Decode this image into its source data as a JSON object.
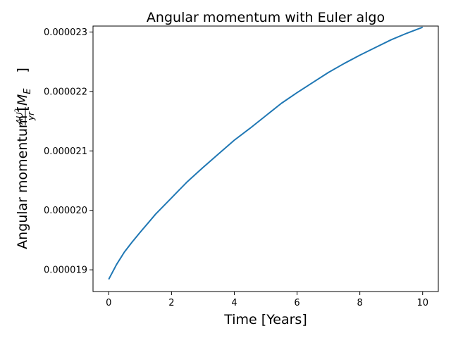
{
  "chart_data": {
    "type": "line",
    "title": "Angular momentum with Euler algo",
    "xlabel": "Time [Years]",
    "ylabel": {
      "main": "Angular momentum [",
      "m": "M",
      "sub": "E",
      "num_base": "AU",
      "num_exp": "2",
      "den": "yr",
      "close": "]"
    },
    "xlim": [
      -0.5,
      10.5
    ],
    "ylim": [
      1.8635e-05,
      2.31e-05
    ],
    "x_ticks": [
      0,
      2,
      4,
      6,
      8,
      10
    ],
    "x_tick_labels": [
      "0",
      "2",
      "4",
      "6",
      "8",
      "10"
    ],
    "y_ticks": [
      1.9e-05,
      2e-05,
      2.1e-05,
      2.2e-05,
      2.3e-05
    ],
    "y_tick_labels": [
      "0.000019",
      "0.000020",
      "0.000021",
      "0.000022",
      "0.000023"
    ],
    "grid": false,
    "series": [
      {
        "color": "#1f77b4",
        "x": [
          0,
          0.25,
          0.5,
          0.75,
          1,
          1.5,
          2,
          2.5,
          3,
          3.5,
          4,
          4.5,
          5,
          5.5,
          6,
          6.5,
          7,
          7.5,
          8,
          8.5,
          9,
          9.5,
          10
        ],
        "y": [
          1.884e-05,
          1.909e-05,
          1.93e-05,
          1.947e-05,
          1.963e-05,
          1.994e-05,
          2.021e-05,
          2.048e-05,
          2.072e-05,
          2.095e-05,
          2.118e-05,
          2.138e-05,
          2.159e-05,
          2.18e-05,
          2.198e-05,
          2.215e-05,
          2.232e-05,
          2.247e-05,
          2.261e-05,
          2.274e-05,
          2.287e-05,
          2.298e-05,
          2.308e-05
        ]
      }
    ]
  }
}
